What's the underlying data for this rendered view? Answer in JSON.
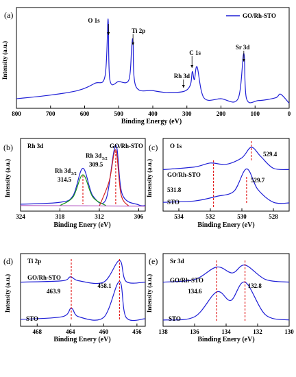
{
  "chart_data": [
    {
      "panel": "(a)",
      "type": "line",
      "xlabel": "Binding Energy (eV)",
      "ylabel": "Intensity (a.u.)",
      "xlim": [
        800,
        0
      ],
      "xticks": [
        "800",
        "700",
        "600",
        "500",
        "400",
        "300",
        "200",
        "100",
        "0"
      ],
      "legend": {
        "label": "GO/Rh-STO",
        "position": "top-right",
        "color": "#1f1fd6"
      },
      "annotations": [
        "O 1s",
        "Ti 2p",
        "Rh 3d",
        "C 1s",
        "Sr 3d"
      ],
      "peaks_eV": {
        "O 1s": 530,
        "Ti 2p": 458,
        "Rh 3d": 310,
        "C 1s": 285,
        "Sr 3d": 133
      },
      "series": [
        {
          "name": "GO/Rh-STO",
          "points": [
            [
              800,
              0.05
            ],
            [
              700,
              0.09
            ],
            [
              620,
              0.14
            ],
            [
              570,
              0.22
            ],
            [
              540,
              0.3
            ],
            [
              531,
              0.93
            ],
            [
              526,
              0.26
            ],
            [
              500,
              0.24
            ],
            [
              470,
              0.26
            ],
            [
              462,
              0.62
            ],
            [
              458,
              0.68
            ],
            [
              450,
              0.19
            ],
            [
              400,
              0.14
            ],
            [
              360,
              0.12
            ],
            [
              310,
              0.13
            ],
            [
              290,
              0.2
            ],
            [
              284,
              0.35
            ],
            [
              278,
              0.26
            ],
            [
              270,
              0.4
            ],
            [
              250,
              0.06
            ],
            [
              200,
              0.05
            ],
            [
              150,
              0.05
            ],
            [
              133,
              0.55
            ],
            [
              125,
              0.05
            ],
            [
              90,
              0.03
            ],
            [
              40,
              0.06
            ],
            [
              25,
              0.1
            ],
            [
              0,
              0.0
            ]
          ]
        }
      ]
    },
    {
      "panel": "(b)",
      "type": "line",
      "title": "Rh 3d",
      "xlabel": "Binding Enery (eV)",
      "ylabel": "Intensity (a.u.)",
      "xlim": [
        324,
        305
      ],
      "xticks": [
        "324",
        "318",
        "312",
        "306"
      ],
      "labels": [
        "GO/Rh-STO",
        "Rh 3d 3/2",
        "314.5",
        "Rh 3d 5/2",
        "309.5"
      ],
      "peaks_eV": [
        314.5,
        309.5
      ],
      "series": [
        {
          "color": "#1f1fd6",
          "points": [
            [
              324,
              0.05
            ],
            [
              318,
              0.08
            ],
            [
              316,
              0.18
            ],
            [
              314.5,
              0.6
            ],
            [
              313,
              0.18
            ],
            [
              311,
              0.12
            ],
            [
              309.5,
              0.95
            ],
            [
              308.5,
              0.2
            ],
            [
              306,
              0.04
            ],
            [
              305,
              0.03
            ]
          ]
        },
        {
          "color": "#1a9a1a",
          "points": [
            [
              318,
              0.03
            ],
            [
              316,
              0.16
            ],
            [
              314.5,
              0.5
            ],
            [
              313,
              0.16
            ],
            [
              311,
              0.03
            ]
          ]
        },
        {
          "color": "#d62020",
          "points": [
            [
              312,
              0.02
            ],
            [
              310.5,
              0.4
            ],
            [
              309.5,
              0.88
            ],
            [
              308.7,
              0.2
            ],
            [
              307.5,
              0.02
            ]
          ]
        },
        {
          "color": "#b050c0",
          "points": [
            [
              324,
              0.03
            ],
            [
              305,
              0.02
            ]
          ]
        }
      ]
    },
    {
      "panel": "(c)",
      "type": "line",
      "title": "O 1s",
      "xlabel": "Binding Enery (eV)",
      "ylabel": "Intensity (a.u.)",
      "xlim": [
        535,
        527
      ],
      "xticks": [
        "534",
        "532",
        "530",
        "528"
      ],
      "labels": [
        "529.4",
        "GO/Rh-STO",
        "531.8",
        "529.7",
        "STO"
      ],
      "peaks_eV": [
        529.4,
        531.8,
        529.7
      ],
      "series": [
        {
          "name": "GO/Rh-STO",
          "color": "#1f1fd6",
          "points": [
            [
              535,
              0.58
            ],
            [
              533,
              0.62
            ],
            [
              532,
              0.68
            ],
            [
              531,
              0.66
            ],
            [
              530,
              0.76
            ],
            [
              529.4,
              0.92
            ],
            [
              528.8,
              0.78
            ],
            [
              528,
              0.6
            ],
            [
              527,
              0.58
            ]
          ]
        },
        {
          "name": "STO",
          "color": "#1f1fd6",
          "points": [
            [
              535,
              0.08
            ],
            [
              533,
              0.1
            ],
            [
              531.6,
              0.17
            ],
            [
              530.5,
              0.25
            ],
            [
              529.7,
              0.59
            ],
            [
              529,
              0.28
            ],
            [
              528,
              0.08
            ],
            [
              527,
              0.07
            ]
          ]
        }
      ]
    },
    {
      "panel": "(d)",
      "type": "line",
      "title": "Ti 2p",
      "xlabel": "Binding Enery (eV)",
      "ylabel": "Intensity (a.u.)",
      "xlim": [
        470,
        455
      ],
      "xticks": [
        "468",
        "464",
        "460",
        "456"
      ],
      "labels": [
        "GO/Rh-STO",
        "458.1",
        "463.9",
        "STO"
      ],
      "peaks_eV": [
        463.9,
        458.1
      ],
      "series": [
        {
          "name": "GO/Rh-STO",
          "color": "#1f1fd6",
          "points": [
            [
              470,
              0.62
            ],
            [
              465,
              0.64
            ],
            [
              464,
              0.7
            ],
            [
              463,
              0.64
            ],
            [
              460,
              0.62
            ],
            [
              458.1,
              0.95
            ],
            [
              457.3,
              0.63
            ],
            [
              455,
              0.62
            ]
          ]
        },
        {
          "name": "STO",
          "color": "#1f1fd6",
          "points": [
            [
              470,
              0.05
            ],
            [
              465,
              0.09
            ],
            [
              463.9,
              0.22
            ],
            [
              463,
              0.09
            ],
            [
              460,
              0.08
            ],
            [
              458.1,
              0.63
            ],
            [
              457.3,
              0.08
            ],
            [
              455,
              0.06
            ]
          ]
        }
      ]
    },
    {
      "panel": "(e)",
      "type": "line",
      "title": "Sr 3d",
      "xlabel": "Binding Enery (eV)",
      "ylabel": "Intensity (a.u.)",
      "xlim": [
        138,
        130
      ],
      "xticks": [
        "138",
        "136",
        "134",
        "132",
        "130"
      ],
      "labels": [
        "GO/Rh-STO",
        "134.6",
        "132.8",
        "STO"
      ],
      "peaks_eV": [
        134.6,
        132.8
      ],
      "series": [
        {
          "name": "GO/Rh-STO",
          "color": "#1f1fd6",
          "points": [
            [
              138,
              0.62
            ],
            [
              136,
              0.66
            ],
            [
              134.6,
              0.85
            ],
            [
              133.6,
              0.76
            ],
            [
              132.8,
              0.88
            ],
            [
              131.5,
              0.66
            ],
            [
              130,
              0.62
            ]
          ]
        },
        {
          "name": "STO",
          "color": "#1f1fd6",
          "points": [
            [
              138,
              0.04
            ],
            [
              136,
              0.09
            ],
            [
              134.6,
              0.47
            ],
            [
              133.7,
              0.34
            ],
            [
              132.8,
              0.62
            ],
            [
              131.5,
              0.12
            ],
            [
              130,
              0.04
            ]
          ]
        }
      ]
    }
  ]
}
